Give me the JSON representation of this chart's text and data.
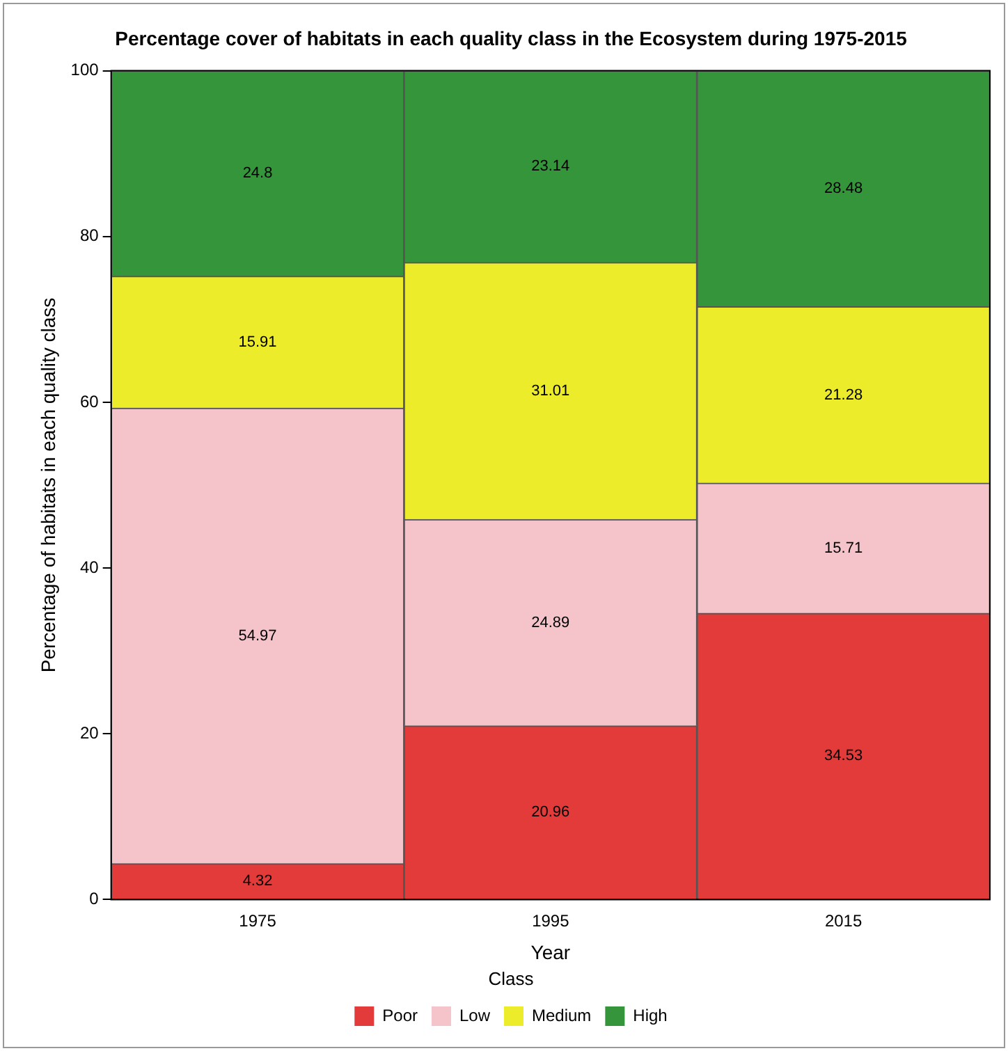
{
  "chart_data": {
    "type": "bar",
    "title": "Percentage cover of habitats in each quality class in the Ecosystem during 1975-2015",
    "xlabel": "Year",
    "ylabel": "Percentage of habitats in each quality class",
    "legend_title": "Class",
    "categories": [
      "1975",
      "1995",
      "2015"
    ],
    "series": [
      {
        "name": "Poor",
        "color": "#e33a3a",
        "values": [
          4.32,
          20.96,
          34.53
        ]
      },
      {
        "name": "Low",
        "color": "#f5c4cb",
        "values": [
          54.97,
          24.89,
          15.71
        ]
      },
      {
        "name": "Medium",
        "color": "#ecec2a",
        "values": [
          15.91,
          31.01,
          21.28
        ]
      },
      {
        "name": "High",
        "color": "#35953a",
        "values": [
          24.8,
          23.14,
          28.48
        ]
      }
    ],
    "stacked": true,
    "ylim": [
      0,
      100
    ],
    "yticks": [
      0,
      20,
      40,
      60,
      80,
      100
    ],
    "grid": false,
    "legend": "bottom",
    "data_labels": true
  }
}
